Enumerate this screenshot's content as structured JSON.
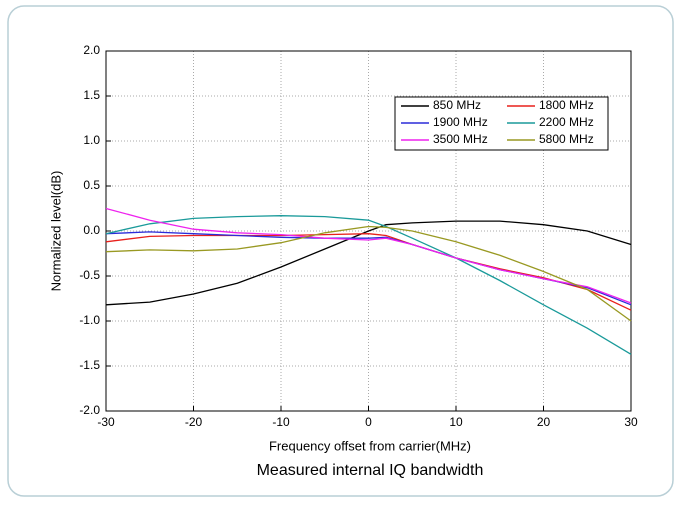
{
  "chart_data": {
    "type": "line",
    "title": "Measured internal IQ bandwidth",
    "xlabel": "Frequency offset from carrier(MHz)",
    "ylabel": "Normalized level(dB)",
    "x": [
      -30,
      -25,
      -20,
      -15,
      -10,
      -5,
      0,
      2,
      5,
      10,
      15,
      20,
      25,
      30
    ],
    "series": [
      {
        "name": "850 MHz",
        "color": "#000000",
        "values": [
          -0.82,
          -0.79,
          -0.7,
          -0.58,
          -0.4,
          -0.2,
          0.0,
          0.07,
          0.09,
          0.11,
          0.11,
          0.07,
          0.0,
          -0.15
        ]
      },
      {
        "name": "1800 MHz",
        "color": "#e8201c",
        "values": [
          -0.12,
          -0.06,
          -0.05,
          -0.05,
          -0.05,
          -0.04,
          -0.03,
          -0.05,
          -0.15,
          -0.3,
          -0.42,
          -0.52,
          -0.65,
          -0.88
        ]
      },
      {
        "name": "1900 MHz",
        "color": "#2b2bd9",
        "values": [
          -0.03,
          -0.01,
          -0.03,
          -0.05,
          -0.07,
          -0.08,
          -0.08,
          -0.07,
          -0.15,
          -0.3,
          -0.43,
          -0.53,
          -0.63,
          -0.82
        ]
      },
      {
        "name": "2200 MHz",
        "color": "#1a9a9a",
        "values": [
          -0.03,
          0.08,
          0.14,
          0.16,
          0.17,
          0.16,
          0.12,
          0.05,
          -0.08,
          -0.3,
          -0.55,
          -0.82,
          -1.08,
          -1.37
        ]
      },
      {
        "name": "3500 MHz",
        "color": "#ee22ee",
        "values": [
          0.25,
          0.12,
          0.02,
          -0.02,
          -0.04,
          -0.08,
          -0.1,
          -0.08,
          -0.15,
          -0.3,
          -0.43,
          -0.53,
          -0.62,
          -0.8
        ]
      },
      {
        "name": "5800 MHz",
        "color": "#999922",
        "values": [
          -0.23,
          -0.21,
          -0.22,
          -0.2,
          -0.13,
          -0.02,
          0.05,
          0.04,
          0.0,
          -0.12,
          -0.27,
          -0.45,
          -0.65,
          -1.0
        ]
      }
    ],
    "xlim": [
      -30,
      30
    ],
    "xticks": [
      -30,
      -20,
      -10,
      0,
      10,
      20,
      30
    ],
    "ylim": [
      -2,
      2
    ],
    "yticks": [
      {
        "value": -2,
        "label": "-2.0"
      },
      -1.5,
      {
        "value": -1,
        "label": "-1.0"
      },
      -0.5,
      {
        "value": 0,
        "label": "0.0"
      },
      0.5,
      {
        "value": 1,
        "label": "1.0"
      },
      1.5,
      {
        "value": 2,
        "label": "2.0"
      }
    ],
    "grid": true,
    "legend": "upper right"
  }
}
